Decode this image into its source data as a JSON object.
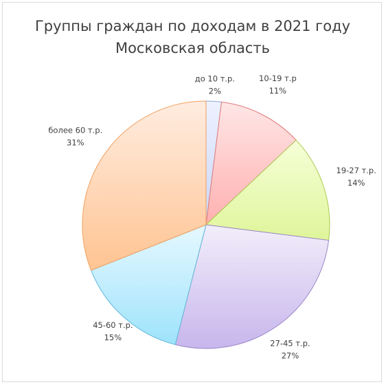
{
  "chart_data": {
    "type": "pie",
    "title": "Группы граждан по доходам в 2021 году\nМосковская область",
    "categories": [
      "до 10 т.р.",
      "10-19 т.р",
      "19-27 т.р.",
      "27-45 т.р.",
      "45-60 т.р.",
      "более 60 т.р."
    ],
    "values": [
      2,
      11,
      14,
      27,
      15,
      31
    ],
    "value_labels": [
      "2%",
      "11%",
      "14%",
      "27%",
      "15%",
      "31%"
    ],
    "start_angle_deg": 0,
    "direction": "clockwise",
    "legend": "none",
    "colors": [
      {
        "light": "#eef2ff",
        "dark": "#c9d6f6",
        "stroke": "#8ea6d8"
      },
      {
        "light": "#ffe6e6",
        "dark": "#ffb0b0",
        "stroke": "#e07a7a"
      },
      {
        "light": "#f6ffd8",
        "dark": "#dff59a",
        "stroke": "#a9c94e"
      },
      {
        "light": "#f2eefa",
        "dark": "#c7b6ec",
        "stroke": "#9a86c9"
      },
      {
        "light": "#e6f8ff",
        "dark": "#9ee3fb",
        "stroke": "#5fb7d9"
      },
      {
        "light": "#ffece0",
        "dark": "#ffc492",
        "stroke": "#f0a060"
      }
    ]
  }
}
